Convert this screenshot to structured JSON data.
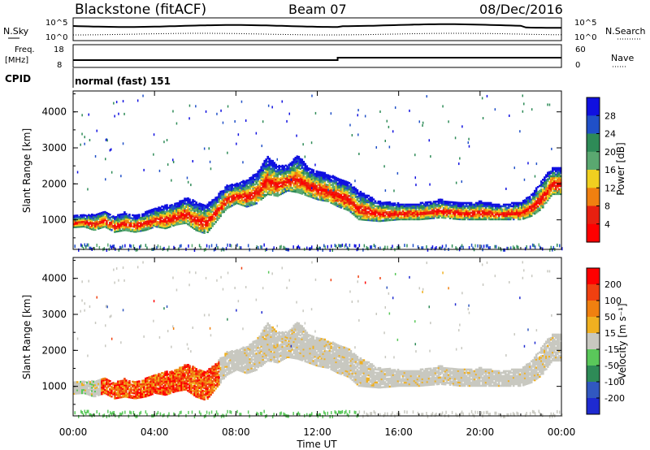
{
  "header": {
    "station": "Blackstone (fitACF)",
    "beam": "Beam 07",
    "date": "08/Dec/2016"
  },
  "noise_panel": {
    "label_line1": "N.Sky",
    "left_ticks": [
      "10^5",
      "10^0"
    ],
    "right_ticks": [
      "10^5",
      "10^0"
    ],
    "right_label": "N.Search",
    "legend_style": "dotted"
  },
  "freq_panel": {
    "label_line1": "Freq.",
    "label_line2": "[MHz]",
    "left_ticks": [
      "18",
      "8"
    ],
    "right_ticks": [
      "60",
      "0"
    ],
    "right_label": "Nave",
    "cpid_label": "CPID",
    "cpid_text": "normal (fast) 151"
  },
  "time_axis": {
    "tick_labels": [
      "00:00",
      "04:00",
      "08:00",
      "12:00",
      "16:00",
      "20:00",
      "00:00"
    ],
    "xlabel": "Time UT"
  },
  "chart_data": [
    {
      "type": "heatmap",
      "panel": "power",
      "xlabel": "Time UT",
      "ylabel": "Slant Range [km]",
      "x_range_hours": [
        0,
        24
      ],
      "ylim": [
        180,
        4580
      ],
      "y_ticks": [
        1000,
        2000,
        3000,
        4000
      ],
      "colorbar": {
        "label": "Power [dB]",
        "ticks": [
          "28",
          "24",
          "20",
          "16",
          "12",
          "8",
          "4"
        ],
        "colors": [
          "#1010e0",
          "#2050c8",
          "#2e8b57",
          "#5aa870",
          "#f0d020",
          "#f08010",
          "#e82010",
          "#ff0000"
        ]
      },
      "band": [
        [
          0.0,
          780,
          1100
        ],
        [
          0.5,
          800,
          1120
        ],
        [
          1.0,
          700,
          1150
        ],
        [
          1.5,
          800,
          1250
        ],
        [
          2.0,
          650,
          1100
        ],
        [
          2.5,
          700,
          1200
        ],
        [
          3.0,
          650,
          1100
        ],
        [
          3.5,
          700,
          1200
        ],
        [
          4.0,
          800,
          1300
        ],
        [
          4.5,
          750,
          1400
        ],
        [
          5.0,
          850,
          1450
        ],
        [
          5.5,
          900,
          1600
        ],
        [
          6.0,
          700,
          1500
        ],
        [
          6.5,
          600,
          1400
        ],
        [
          7.0,
          950,
          1650
        ],
        [
          7.5,
          1300,
          1950
        ],
        [
          8.0,
          1450,
          2000
        ],
        [
          8.5,
          1350,
          2100
        ],
        [
          9.0,
          1450,
          2300
        ],
        [
          9.5,
          1700,
          2750
        ],
        [
          10.0,
          1650,
          2500
        ],
        [
          10.5,
          1800,
          2500
        ],
        [
          11.0,
          1750,
          2800
        ],
        [
          11.5,
          1650,
          2450
        ],
        [
          12.0,
          1550,
          2350
        ],
        [
          12.5,
          1500,
          2250
        ],
        [
          13.0,
          1350,
          2150
        ],
        [
          13.5,
          1250,
          2050
        ],
        [
          14.0,
          1000,
          1800
        ],
        [
          15.0,
          950,
          1500
        ],
        [
          16.0,
          1000,
          1450
        ],
        [
          17.0,
          1000,
          1450
        ],
        [
          18.0,
          1050,
          1550
        ],
        [
          19.0,
          1000,
          1450
        ],
        [
          20.0,
          1000,
          1500
        ],
        [
          21.0,
          1000,
          1400
        ],
        [
          22.0,
          1000,
          1500
        ],
        [
          22.5,
          1100,
          1700
        ],
        [
          23.0,
          1300,
          2100
        ],
        [
          23.5,
          1700,
          2450
        ]
      ]
    },
    {
      "type": "heatmap",
      "panel": "velocity",
      "xlabel": "Time UT",
      "ylabel": "Slant Range [km]",
      "x_range_hours": [
        0,
        24
      ],
      "ylim": [
        180,
        4580
      ],
      "y_ticks": [
        1000,
        2000,
        3000,
        4000
      ],
      "colorbar": {
        "label": "Velocity [m s⁻¹]",
        "ticks": [
          "200",
          "100",
          "50",
          "15",
          "-15",
          "-50",
          "-100",
          "-200"
        ],
        "colors": [
          "#1e2ad0",
          "#3158c0",
          "#2e8b57",
          "#5ac85a",
          "#c8c8c0",
          "#f0b020",
          "#f08010",
          "#f04010",
          "#ff0000"
        ]
      }
    }
  ]
}
